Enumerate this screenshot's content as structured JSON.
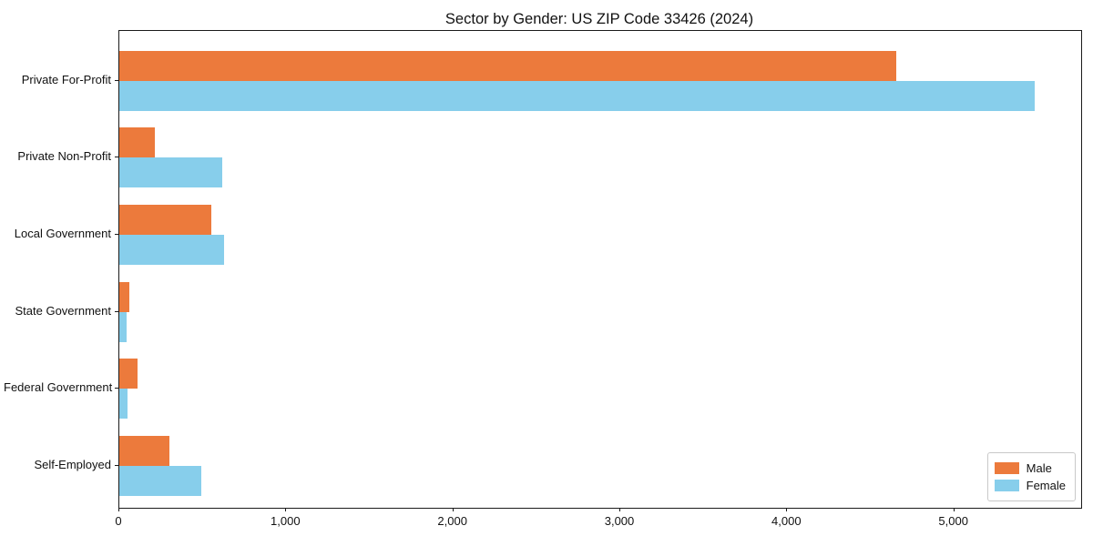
{
  "chart_data": {
    "type": "bar",
    "orientation": "horizontal",
    "title": "Sector by Gender: US ZIP Code 33426 (2024)",
    "categories": [
      "Private For-Profit",
      "Private Non-Profit",
      "Local Government",
      "State Government",
      "Federal Government",
      "Self-Employed"
    ],
    "series": [
      {
        "name": "Male",
        "color": "#EC7A3C",
        "values": [
          4650,
          215,
          550,
          60,
          110,
          300
        ]
      },
      {
        "name": "Female",
        "color": "#87CEEB",
        "values": [
          5480,
          615,
          625,
          45,
          50,
          490
        ]
      }
    ],
    "xlabel": "",
    "ylabel": "",
    "xlim": [
      0,
      5760
    ],
    "xticks": [
      0,
      1000,
      2000,
      3000,
      4000,
      5000
    ],
    "xtick_labels": [
      "0",
      "1,000",
      "2,000",
      "3,000",
      "4,000",
      "5,000"
    ],
    "grid": false,
    "legend": {
      "position": "lower right",
      "entries": [
        "Male",
        "Female"
      ]
    }
  }
}
